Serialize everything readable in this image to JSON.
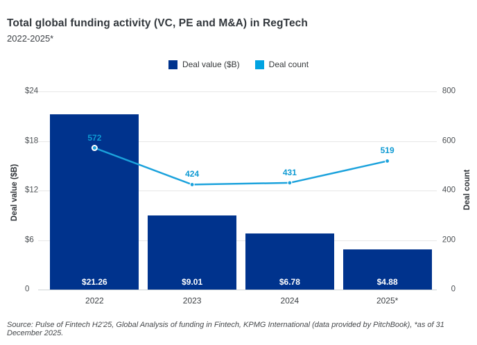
{
  "header": {
    "title": "Total global funding activity (VC, PE and M&A) in RegTech",
    "subtitle": "2022-2025*"
  },
  "legend": [
    {
      "label": "Deal value ($B)",
      "color": "#00338D"
    },
    {
      "label": "Deal count",
      "color": "#00A3E1"
    }
  ],
  "footer": {
    "source": "Source: Pulse of Fintech H2'25, Global Analysis of funding in Fintech, KPMG International (data provided by PitchBook), *as of 31 December 2025."
  },
  "chart_data": {
    "type": "bar",
    "subtype": "bar+line combo, dual axis",
    "title": "Total global funding activity (VC, PE and M&A) in RegTech",
    "subtitle": "2022-2025*",
    "categories": [
      "2022",
      "2023",
      "2024",
      "2025*"
    ],
    "series": [
      {
        "name": "Deal value ($B)",
        "type": "bar",
        "axis": "left",
        "color": "#00338D",
        "values": [
          21.26,
          9.01,
          6.78,
          4.88
        ],
        "labels": [
          "$21.26",
          "$9.01",
          "$6.78",
          "$4.88"
        ],
        "label_color": "#ffffff"
      },
      {
        "name": "Deal count",
        "type": "line",
        "axis": "right",
        "color": "#1BA2DC",
        "values": [
          572,
          424,
          431,
          519
        ],
        "labels": [
          "572",
          "424",
          "431",
          "519"
        ],
        "label_color": "#0E9AD3"
      }
    ],
    "left_axis": {
      "title": "Deal value ($B)",
      "range": [
        0,
        24
      ],
      "ticks": [
        {
          "label": "$24",
          "value": 24
        },
        {
          "label": "$18",
          "value": 18
        },
        {
          "label": "$12",
          "value": 12
        },
        {
          "label": "$6",
          "value": 6
        },
        {
          "label": "0",
          "value": 0
        }
      ]
    },
    "right_axis": {
      "title": "Deal count",
      "range": [
        0,
        800
      ],
      "ticks": [
        {
          "label": "800",
          "value": 800
        },
        {
          "label": "600",
          "value": 600
        },
        {
          "label": "400",
          "value": 400
        },
        {
          "label": "200",
          "value": 200
        },
        {
          "label": "0",
          "value": 0
        }
      ]
    },
    "grid": "horizontal gridlines on",
    "legend_position": "top-center"
  }
}
